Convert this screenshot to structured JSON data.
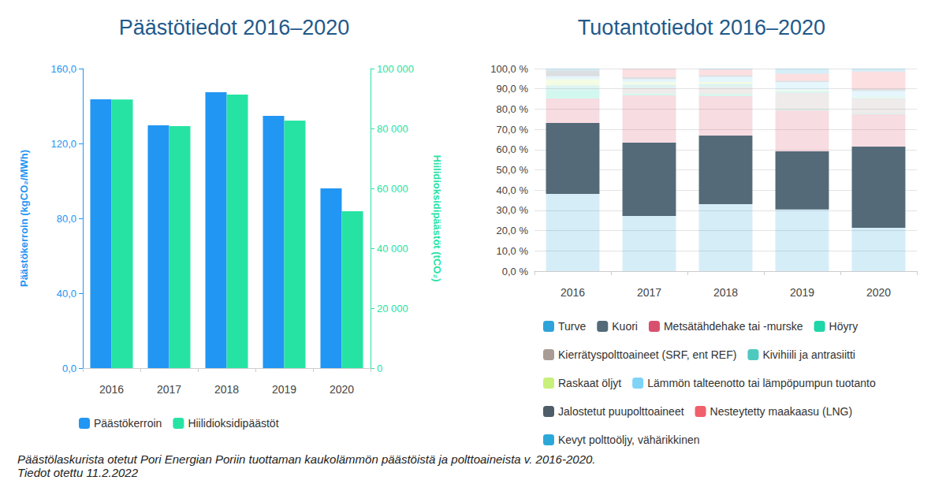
{
  "chart_data": [
    {
      "type": "bar",
      "title": "Päästötiedot 2016–2020",
      "categories": [
        "2016",
        "2017",
        "2018",
        "2019",
        "2020"
      ],
      "series": [
        {
          "name": "Päästökerroin",
          "color": "#2196f3",
          "values": [
            143.6,
            129.7,
            147.4,
            134.7,
            96.0
          ]
        },
        {
          "name": "Hiilidioksidipäästöt",
          "color": "#26e3a4",
          "values": [
            89700,
            80800,
            91300,
            82600,
            52400
          ],
          "axis": "y2"
        }
      ],
      "y_label": "Päästökerroin (kgCO₂/MWh)",
      "y2_label": "Hiilidioksidipäästöt (tCO₂)",
      "ylim": [
        0,
        160
      ],
      "yticks": [
        {
          "value": 0,
          "label": "0,0"
        },
        {
          "value": 40,
          "label": "40,0"
        },
        {
          "value": 80,
          "label": "80,0"
        },
        {
          "value": 120,
          "label": "120,0"
        },
        {
          "value": 160,
          "label": "160,0"
        }
      ],
      "y2lim": [
        0,
        100000
      ],
      "y2ticks": [
        0,
        {
          "value": 20000,
          "label": "20 000"
        },
        {
          "value": 40000,
          "label": "40 000"
        },
        {
          "value": 60000,
          "label": "60 000"
        },
        {
          "value": 80000,
          "label": "80 000"
        },
        {
          "value": 100000,
          "label": "100 000"
        }
      ],
      "grid": false,
      "legend": "bottom"
    },
    {
      "type": "bar",
      "title": "Tuotantotiedot 2016–2020",
      "categories": [
        "2016",
        "2017",
        "2018",
        "2019",
        "2020"
      ],
      "stacked": true,
      "series": [
        {
          "name": "Turve",
          "color": "#2ea3d9",
          "values": [
            38.1,
            27.2,
            33.1,
            30.4,
            21.4
          ]
        },
        {
          "name": "Kuori",
          "color": "#546a78",
          "values": [
            35.1,
            36.2,
            33.8,
            28.7,
            40.1
          ]
        },
        {
          "name": "Metsätähdehake tai -murske",
          "color": "#d9506e",
          "values": [
            12.0,
            23.4,
            19.5,
            20.3,
            15.9
          ]
        },
        {
          "name": "Höyry",
          "color": "#1fd6a8",
          "values": [
            4.0,
            0.8,
            1.0,
            0.5,
            0.3
          ]
        },
        {
          "name": "Kierrätyspolttoaineet (SRF, ent REF)",
          "color": "#a89c94",
          "values": [
            0,
            3.0,
            3.5,
            8.0,
            7.5
          ]
        },
        {
          "name": "Kivihiili ja antrasiitti",
          "color": "#4fc9c0",
          "values": [
            2.5,
            1.5,
            1.5,
            1.0,
            0.5
          ]
        },
        {
          "name": "Raskaat öljyt",
          "color": "#c8f07a",
          "values": [
            3.0,
            1.2,
            1.0,
            0.5,
            0.3
          ]
        },
        {
          "name": "Lämmön talteenotto tai lämpöpumpun tuotanto",
          "color": "#7fd3f7",
          "values": [
            1.5,
            1.5,
            2.5,
            4.0,
            3.0
          ]
        },
        {
          "name": "Jalostetut puupolttoaineet",
          "color": "#4e5d68",
          "values": [
            2.8,
            1.0,
            0.8,
            0.6,
            1.0
          ]
        },
        {
          "name": "Nesteytetty maakaasu (LNG)",
          "color": "#f0606a",
          "values": [
            0,
            4.0,
            2.8,
            3.5,
            8.5
          ]
        },
        {
          "name": "Kevyt polttoöljy, vähärikkinen",
          "color": "#2ca8d8",
          "values": [
            1.0,
            0.2,
            0.5,
            2.5,
            1.5
          ]
        }
      ],
      "ylim": [
        0,
        100
      ],
      "yticks": [
        {
          "value": 0,
          "label": "0,0 %"
        },
        {
          "value": 10,
          "label": "10,0 %"
        },
        {
          "value": 20,
          "label": "20,0 %"
        },
        {
          "value": 30,
          "label": "30,0 %"
        },
        {
          "value": 40,
          "label": "40,0 %"
        },
        {
          "value": 50,
          "label": "50,0 %"
        },
        {
          "value": 60,
          "label": "60,0 %"
        },
        {
          "value": 70,
          "label": "70,0 %"
        },
        {
          "value": 80,
          "label": "80,0 %"
        },
        {
          "value": 90,
          "label": "90,0 %"
        },
        {
          "value": 100,
          "label": "100,0 %"
        }
      ],
      "grid": true,
      "legend": "bottom"
    }
  ],
  "caption": [
    "Päästölaskurista otetut Pori Energian Poriin tuottaman kaukolämmön päästöistä ja polttoaineista v. 2016-2020.",
    "Tiedot otettu 11.2.2022"
  ]
}
